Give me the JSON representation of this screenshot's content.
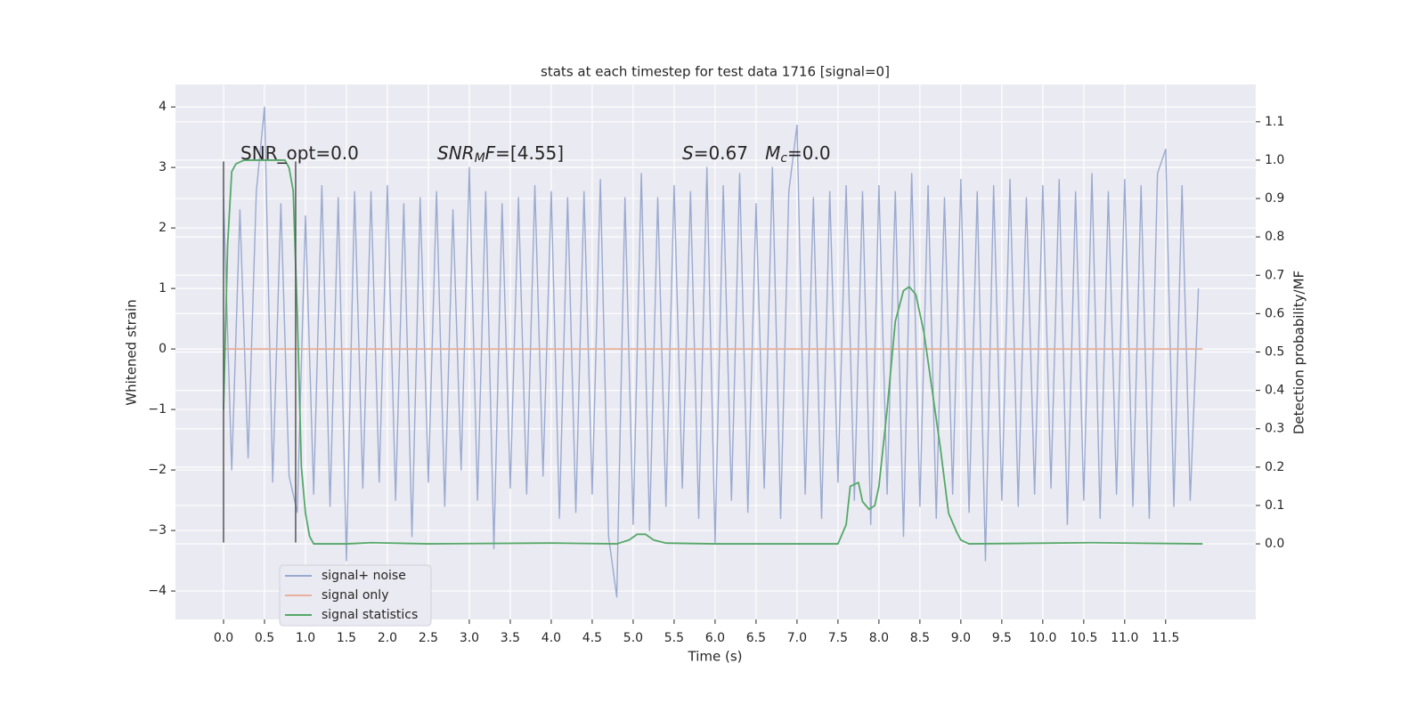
{
  "chart_data": {
    "type": "line",
    "title": "stats at each timestep for test data 1716 [signal=0]",
    "xlabel": "Time (s)",
    "ylabel": "Whitened strain",
    "y2label": "Detection probability/MF",
    "xlim": [
      -0.587,
      12.6
    ],
    "ylim": [
      -4.47,
      4.37
    ],
    "y2lim": [
      -0.197,
      1.197
    ],
    "xticks": [
      {
        "value": 0,
        "label": "0.0"
      },
      {
        "value": 0.5,
        "label": "0.5"
      },
      {
        "value": 1,
        "label": "1.0"
      },
      {
        "value": 1.5,
        "label": "1.5"
      },
      {
        "value": 2,
        "label": "2.0"
      },
      {
        "value": 2.5,
        "label": "2.5"
      },
      {
        "value": 3,
        "label": "3.0"
      },
      {
        "value": 3.5,
        "label": "3.5"
      },
      {
        "value": 4,
        "label": "4.0"
      },
      {
        "value": 4.5,
        "label": "4.5"
      },
      {
        "value": 5,
        "label": "5.0"
      },
      {
        "value": 5.5,
        "label": "5.5"
      },
      {
        "value": 6,
        "label": "6.0"
      },
      {
        "value": 6.5,
        "label": "6.5"
      },
      {
        "value": 7,
        "label": "7.0"
      },
      {
        "value": 7.5,
        "label": "7.5"
      },
      {
        "value": 8,
        "label": "8.0"
      },
      {
        "value": 8.5,
        "label": "8.5"
      },
      {
        "value": 9,
        "label": "9.0"
      },
      {
        "value": 9.5,
        "label": "9.5"
      },
      {
        "value": 10,
        "label": "10.0"
      },
      {
        "value": 10.5,
        "label": "10.5"
      },
      {
        "value": 11,
        "label": "11.0"
      },
      {
        "value": 11.5,
        "label": "11.5"
      }
    ],
    "yticks": [
      {
        "value": -4,
        "label": "−4"
      },
      {
        "value": -3,
        "label": "−3"
      },
      {
        "value": -2,
        "label": "−2"
      },
      {
        "value": -1,
        "label": "−1"
      },
      0,
      1,
      2,
      3,
      4
    ],
    "y2ticks": [
      {
        "value": 0,
        "label": "0.0"
      },
      {
        "value": 0.1,
        "label": "0.1"
      },
      {
        "value": 0.2,
        "label": "0.2"
      },
      {
        "value": 0.3,
        "label": "0.3"
      },
      {
        "value": 0.4,
        "label": "0.4"
      },
      {
        "value": 0.5,
        "label": "0.5"
      },
      {
        "value": 0.6,
        "label": "0.6"
      },
      {
        "value": 0.7,
        "label": "0.7"
      },
      {
        "value": 0.8,
        "label": "0.8"
      },
      {
        "value": 0.9,
        "label": "0.9"
      },
      {
        "value": 1,
        "label": "1.0"
      },
      {
        "value": 1.1,
        "label": "1.1"
      }
    ],
    "grid": true,
    "legend": "lower left",
    "series": [
      {
        "name": "signal+ noise",
        "color": "#9aaacf",
        "x": [
          0,
          0.1,
          0.2,
          0.3,
          0.4,
          0.5,
          0.6,
          0.7,
          0.8,
          0.9,
          1,
          1.1,
          1.2,
          1.3,
          1.4,
          1.5,
          1.6,
          1.7,
          1.8,
          1.9,
          2,
          2.1,
          2.2,
          2.3,
          2.4,
          2.5,
          2.6,
          2.7,
          2.8,
          2.9,
          3,
          3.1,
          3.2,
          3.3,
          3.4,
          3.5,
          3.6,
          3.7,
          3.8,
          3.9,
          4,
          4.1,
          4.2,
          4.3,
          4.4,
          4.5,
          4.6,
          4.7,
          4.8,
          4.9,
          5,
          5.1,
          5.2,
          5.3,
          5.4,
          5.5,
          5.6,
          5.7,
          5.8,
          5.9,
          6,
          6.1,
          6.2,
          6.3,
          6.4,
          6.5,
          6.6,
          6.7,
          6.8,
          6.9,
          7,
          7.1,
          7.2,
          7.3,
          7.4,
          7.5,
          7.6,
          7.7,
          7.8,
          7.9,
          8,
          8.1,
          8.2,
          8.3,
          8.4,
          8.5,
          8.6,
          8.7,
          8.8,
          8.9,
          9,
          9.1,
          9.2,
          9.3,
          9.4,
          9.5,
          9.6,
          9.7,
          9.8,
          9.9,
          10,
          10.1,
          10.2,
          10.3,
          10.4,
          10.5,
          10.6,
          10.7,
          10.8,
          10.9,
          11,
          11.1,
          11.2,
          11.3,
          11.4,
          11.5,
          11.6,
          11.7,
          11.8,
          11.9
        ],
        "values": [
          2.5,
          -2.0,
          2.3,
          -1.8,
          2.6,
          4.0,
          -2.2,
          2.4,
          -2.1,
          -2.7,
          2.2,
          -2.4,
          2.7,
          -2.6,
          2.5,
          -3.5,
          2.6,
          -2.3,
          2.6,
          -2.2,
          2.7,
          -2.5,
          2.4,
          -3.1,
          2.5,
          -2.2,
          2.6,
          -2.6,
          2.3,
          -2.0,
          3.0,
          -2.5,
          2.6,
          -3.3,
          2.4,
          -2.3,
          2.5,
          -2.4,
          2.7,
          -2.1,
          2.6,
          -2.8,
          2.5,
          -2.7,
          2.6,
          -2.4,
          2.8,
          -3.1,
          -4.1,
          2.5,
          -2.9,
          2.9,
          -3.0,
          2.5,
          -2.6,
          2.7,
          -2.3,
          2.6,
          -2.8,
          3.0,
          -3.2,
          2.7,
          -2.5,
          2.9,
          -2.7,
          2.4,
          -2.3,
          3.0,
          -2.8,
          2.6,
          3.7,
          -2.4,
          2.5,
          -2.8,
          2.6,
          -2.2,
          2.7,
          -2.5,
          2.6,
          -2.9,
          2.7,
          -2.4,
          2.6,
          -3.1,
          2.9,
          -2.6,
          2.7,
          -2.8,
          2.5,
          -2.4,
          2.8,
          -2.7,
          2.6,
          -3.5,
          2.7,
          -2.5,
          2.8,
          -2.6,
          2.5,
          -2.4,
          2.7,
          -2.3,
          2.8,
          -2.9,
          2.6,
          -2.5,
          2.9,
          -2.8,
          2.6,
          -2.4,
          2.8,
          -2.6,
          2.7,
          -2.8,
          2.9,
          3.3,
          -2.6,
          2.7,
          -2.5,
          1.0
        ]
      },
      {
        "name": "signal only",
        "color": "#e8b09a",
        "x": [
          0,
          11.95
        ],
        "values": [
          0,
          0
        ]
      },
      {
        "name": "signal statistics",
        "color": "#55a868",
        "axis": "y2",
        "x": [
          0,
          0.05,
          0.1,
          0.15,
          0.25,
          0.5,
          0.75,
          0.8,
          0.85,
          0.9,
          0.95,
          1,
          1.05,
          1.1,
          1.5,
          1.8,
          2.5,
          4,
          4.8,
          4.95,
          5.05,
          5.15,
          5.25,
          5.4,
          6,
          7.5,
          7.6,
          7.65,
          7.7,
          7.75,
          7.8,
          7.88,
          7.95,
          8,
          8.1,
          8.2,
          8.3,
          8.37,
          8.45,
          8.55,
          8.65,
          8.75,
          8.85,
          8.95,
          9,
          9.1,
          10.6,
          11.95
        ],
        "values": [
          0.35,
          0.78,
          0.97,
          0.99,
          1.0,
          1.0,
          1.0,
          0.98,
          0.92,
          0.6,
          0.2,
          0.08,
          0.02,
          0,
          0,
          0.003,
          0,
          0.002,
          0,
          0.01,
          0.025,
          0.025,
          0.01,
          0.002,
          0,
          0,
          0.05,
          0.15,
          0.155,
          0.16,
          0.11,
          0.09,
          0.1,
          0.15,
          0.35,
          0.58,
          0.66,
          0.67,
          0.65,
          0.55,
          0.4,
          0.25,
          0.08,
          0.03,
          0.01,
          0,
          0.003,
          0
        ]
      }
    ],
    "vlines": [
      {
        "x": 0,
        "y": [
          -3.2,
          3.1
        ]
      },
      {
        "x": 0.88,
        "y": [
          -3.2,
          3.1
        ]
      }
    ],
    "annotations": [
      {
        "parts": [
          {
            "text": "SNR_opt=0.0"
          }
        ]
      },
      {
        "parts": [
          {
            "text": "SNR",
            "italic": true
          },
          {
            "text": "M",
            "italic": true,
            "sub": true
          },
          {
            "text": "F",
            "italic": true
          },
          {
            "text": "=[4.55]"
          }
        ]
      },
      {
        "parts": [
          {
            "text": "S",
            "italic": true
          },
          {
            "text": "=0.67   "
          },
          {
            "text": "M",
            "italic": true
          },
          {
            "text": "c",
            "italic": true,
            "sub": true
          },
          {
            "text": "=0.0"
          }
        ]
      }
    ]
  }
}
